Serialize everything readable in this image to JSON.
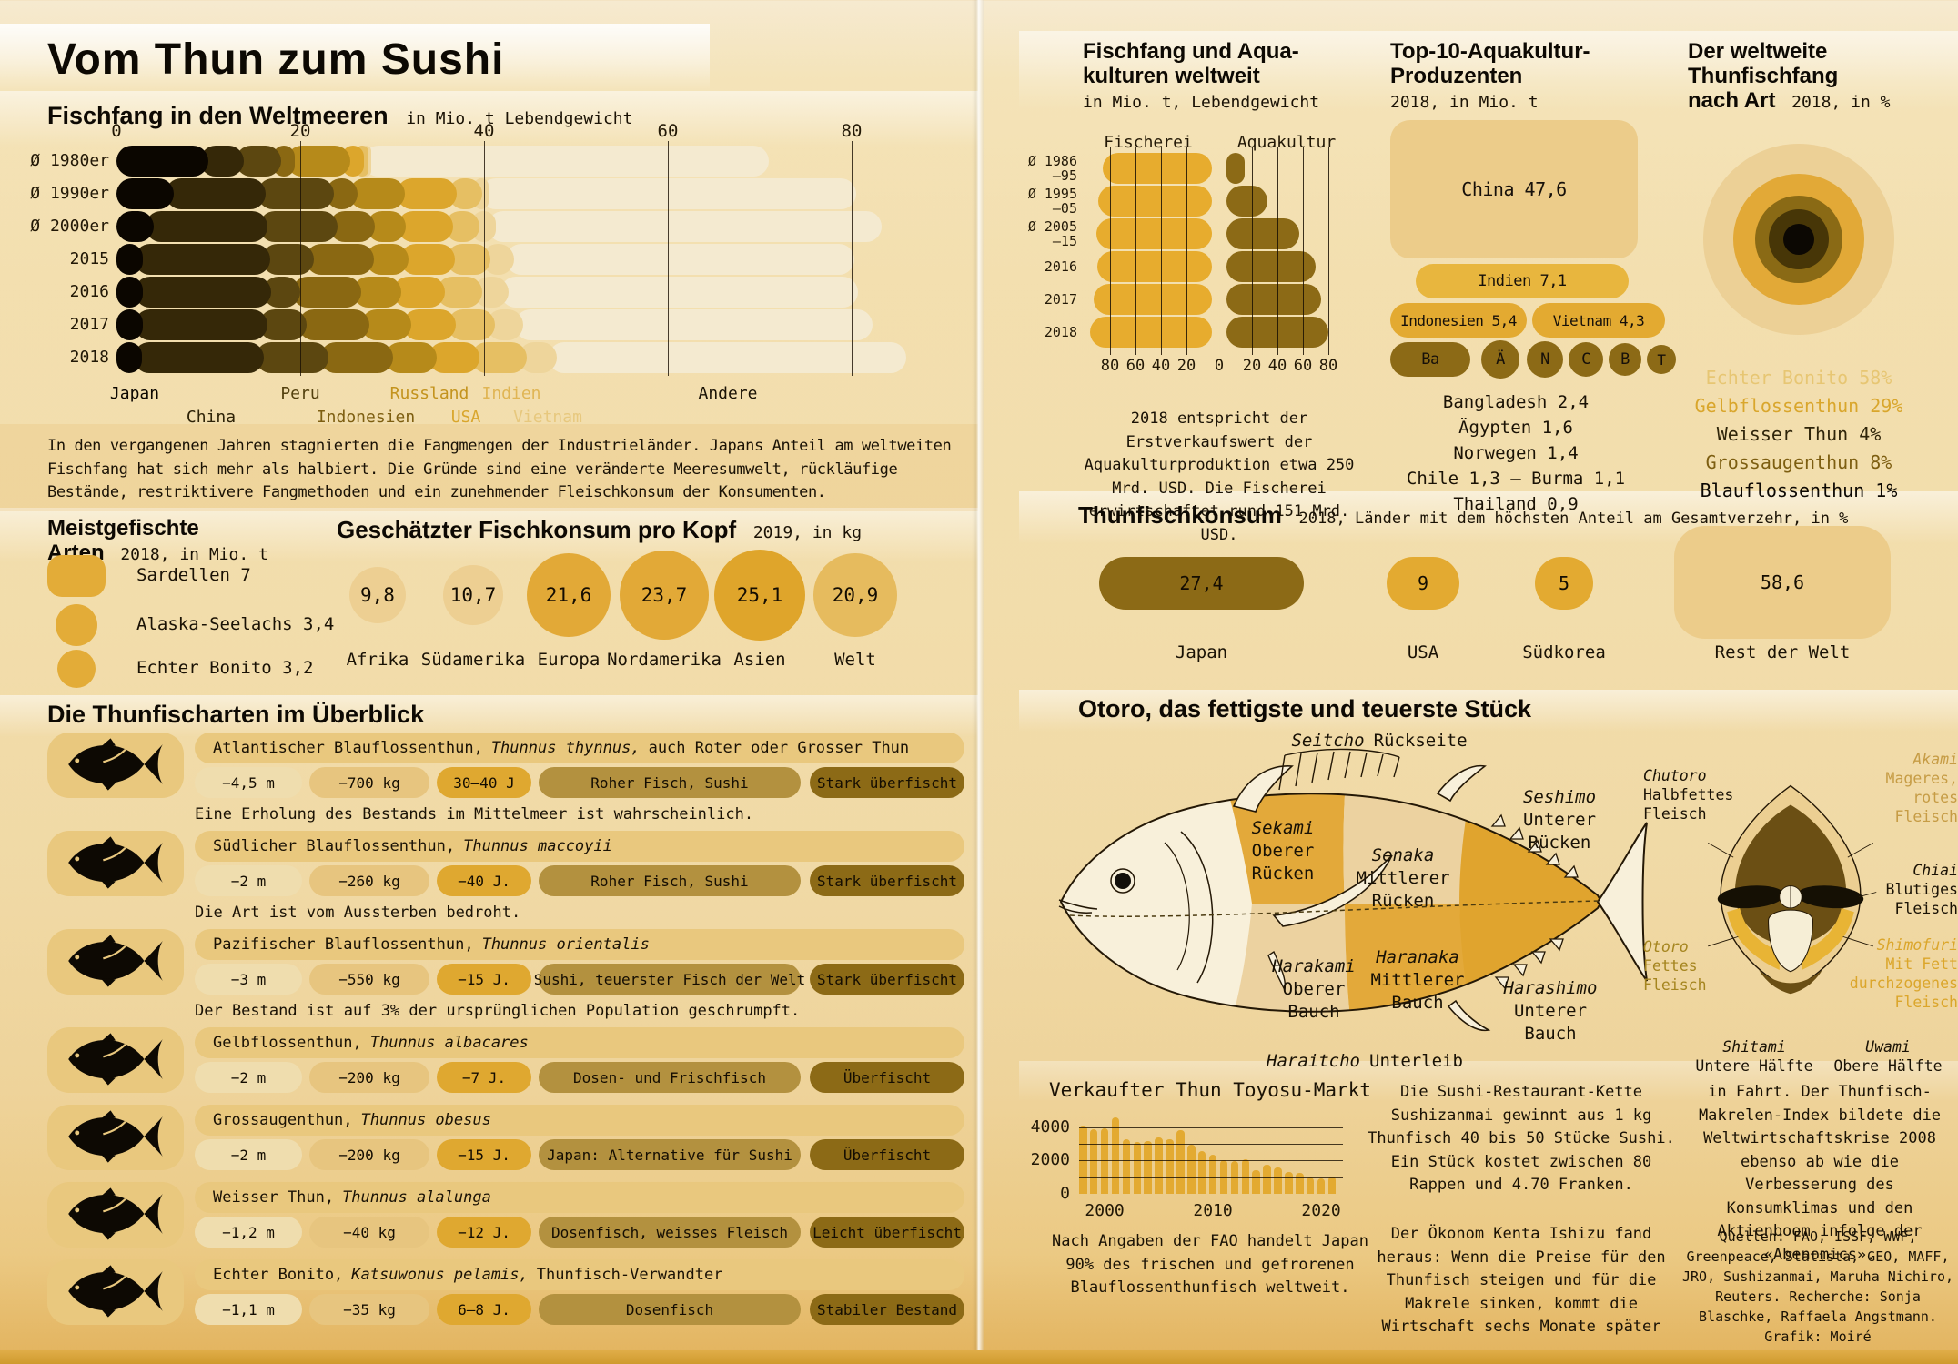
{
  "page": {
    "title": "Vom Thun zum Sushi"
  },
  "weltmeere": {
    "title": "Fischfang in den Weltmeeren",
    "subtitle": "in Mio. t Lebendgewicht",
    "paragraph": "In den vergangenen Jahren stagnierten die Fangmengen der Industrieländer. Japans Anteil am weltweiten Fischfang hat sich mehr als halbiert. Die Gründe sind eine veränderte Meeresumwelt, rückläufige Bestände, restriktivere Fangmethoden und ein zunehmender Fleischkonsum der Konsumenten."
  },
  "meistgefischte": {
    "title_line1": "Meistgefischte",
    "title_line2": "Arten",
    "subtitle": "2018, in Mio. t"
  },
  "fischkonsum": {
    "title": "Geschätzter Fischkonsum pro Kopf",
    "subtitle": "2019, in kg"
  },
  "fang_aqua": {
    "title_line1": "Fischfang und Aqua-",
    "title_line2": "kulturen weltweit",
    "subtitle": "in Mio. t, Lebendgewicht",
    "col_left": "Fischerei",
    "col_right": "Aquakultur",
    "caption": "2018 entspricht der Erstverkaufswert der Aquakulturproduktion etwa 250 Mrd. USD. Die Fischerei erwirtschaftet rund 151 Mrd. USD."
  },
  "top10": {
    "title_line1": "Top-10-Aquakultur-",
    "title_line2": "Produzenten",
    "subtitle": "2018, in Mio. t",
    "list": [
      "Bangladesh 2,4",
      "Ägypten 1,6",
      "Norwegen 1,4",
      "Chile 1,3 – Burma 1,1",
      "Thailand 0,9"
    ]
  },
  "art": {
    "title_line1": "Der weltweite",
    "title_line2": "Thunfischfang",
    "title_line3": "nach Art",
    "subtitle": "2018, in %"
  },
  "konsum": {
    "title": "Thunfischkonsum",
    "subtitle": "2018, Länder mit dem höchsten Anteil am Gesamtverzehr, in %"
  },
  "arten": {
    "title": "Die Thunfischarten im Überblick",
    "rows": [
      {
        "name": "Atlantischer Blauflossenthun,",
        "latin": "Thunnus thynnus,",
        "extra": "auch Roter oder Grosser Thun",
        "length": "−4,5 m",
        "weight": "−700 kg",
        "age": "30–40 J",
        "use": "Roher Fisch, Sushi",
        "status": "Stark überfischt",
        "note": "Eine Erholung des Bestands im Mittelmeer ist wahrscheinlich."
      },
      {
        "name": "Südlicher Blauflossenthun,",
        "latin": "Thunnus maccoyii",
        "extra": "",
        "length": "−2 m",
        "weight": "−260 kg",
        "age": "−40 J.",
        "use": "Roher Fisch, Sushi",
        "status": "Stark überfischt",
        "note": "Die Art ist vom Aussterben bedroht."
      },
      {
        "name": "Pazifischer Blauflossenthun,",
        "latin": "Thunnus orientalis",
        "extra": "",
        "length": "−3 m",
        "weight": "−550 kg",
        "age": "−15 J.",
        "use": "Sushi, teuerster Fisch der Welt",
        "status": "Stark überfischt",
        "note": "Der Bestand ist auf 3% der ursprünglichen Population geschrumpft."
      },
      {
        "name": "Gelbflossenthun,",
        "latin": "Thunnus albacares",
        "extra": "",
        "length": "−2 m",
        "weight": "−200 kg",
        "age": "−7 J.",
        "use": "Dosen- und Frischfisch",
        "status": "Überfischt",
        "note": ""
      },
      {
        "name": "Grossaugenthun,",
        "latin": "Thunnus obesus",
        "extra": "",
        "length": "−2 m",
        "weight": "−200 kg",
        "age": "−15 J.",
        "use": "Japan: Alternative für Sushi",
        "status": "Überfischt",
        "note": ""
      },
      {
        "name": "Weisser Thun,",
        "latin": "Thunnus alalunga",
        "extra": "",
        "length": "−1,2 m",
        "weight": "−40 kg",
        "age": "−12 J.",
        "use": "Dosenfisch, weisses Fleisch",
        "status": "Leicht überfischt",
        "note": ""
      },
      {
        "name": "Echter Bonito,",
        "latin": "Katsuwonus pelamis,",
        "extra": "Thunfisch-Verwandter",
        "length": "−1,1 m",
        "weight": "−35 kg",
        "age": "6–8 J.",
        "use": "Dosenfisch",
        "status": "Stabiler Bestand",
        "note": ""
      }
    ]
  },
  "otoro": {
    "title": "Otoro, das fettigste und teuerste Stück",
    "fish": {
      "seitcho_i": "Seitcho",
      "seitcho_r": "Rückseite",
      "seshimo": [
        "Seshimo",
        "Unterer",
        "Rücken"
      ],
      "sekami": [
        "Sekami",
        "Oberer",
        "Rücken"
      ],
      "senaka": [
        "Senaka",
        "Mittlerer",
        "Rücken"
      ],
      "harakami": [
        "Harakami",
        "Oberer",
        "Bauch"
      ],
      "haranaka": [
        "Haranaka",
        "Mittlerer",
        "Bauch"
      ],
      "harashimo": [
        "Harashimo",
        "Unterer",
        "Bauch"
      ],
      "haraitcho_i": "Haraitcho",
      "haraitcho_r": "Unterleib"
    },
    "cross": {
      "chutoro": [
        "Chutoro",
        "Halbfettes",
        "Fleisch"
      ],
      "akami": [
        "Akami",
        "Mageres,",
        "rotes",
        "Fleisch"
      ],
      "chiai": [
        "Chiai",
        "Blutiges",
        "Fleisch"
      ],
      "shimofuri": [
        "Shimofuri",
        "Mit Fett",
        "durchzogenes",
        "Fleisch"
      ],
      "otoro": [
        "Otoro",
        "Fettes",
        "Fleisch"
      ],
      "shitami": [
        "Shitami",
        "Untere Hälfte"
      ],
      "uwami": [
        "Uwami",
        "Obere Hälfte"
      ]
    }
  },
  "toyosu": {
    "title": "Verkaufter Thun Toyosu-Markt",
    "caption": "Nach Angaben der FAO handelt Japan 90% des frischen und gefrorenen Blauflossenthunfisch weltweit."
  },
  "texts": {
    "col2a": "Die Sushi-Restaurant-Kette Sushizanmai gewinnt aus 1 kg Thunfisch 40 bis 50 Stücke Sushi. Ein Stück kostet zwischen 80 Rappen und 4.70 Franken.",
    "col2b": "Der Ökonom Kenta Ishizu fand heraus: Wenn die Preise für den Thunfisch steigen und für die Makrele sinken, kommt die Wirtschaft sechs Monate später",
    "col3": "in Fahrt. Der Thunfisch-Makrelen-Index bildete die Weltwirtschaftskrise 2008 ebenso ab wie die Verbesserung des Konsumklimas und den Aktienboom infolge der «Abenomics».",
    "sources": "Quellen: FAO, ISSF, WWF, Greenpeace, Statista, GEO, MAFF, JRO, Sushizanmai, Maruha Nichiro, Reuters. Recherche: Sonja Blaschke, Raffaela Angstmann. Grafik: Moiré"
  },
  "chart_data": [
    {
      "id": "weltmeere",
      "type": "bar",
      "stacked": true,
      "orientation": "horizontal",
      "title": "Fischfang in den Weltmeeren",
      "unit": "Mio. t Lebendgewicht",
      "categories": [
        "Ø 1980er",
        "Ø 1990er",
        "Ø 2000er",
        "2015",
        "2016",
        "2017",
        "2018"
      ],
      "xlim": [
        0,
        88
      ],
      "axis_ticks": [
        0,
        20,
        40,
        60,
        80
      ],
      "gridlines": [
        20,
        40,
        60,
        80
      ],
      "series": [
        {
          "name": "Japan",
          "color": "#0b0600",
          "label_color": "#0b0600",
          "values": [
            10,
            6.2,
            4.1,
            2.9,
            2.9,
            2.9,
            2.8
          ]
        },
        {
          "name": "China",
          "color": "#352808",
          "label_color": "#2e2307",
          "values": [
            3.9,
            10,
            12.3,
            13.8,
            13.9,
            13.5,
            13.2
          ]
        },
        {
          "name": "Peru",
          "color": "#5c4710",
          "label_color": "#53400e",
          "values": [
            4,
            7.5,
            7.7,
            4.8,
            3.2,
            4.3,
            7.1
          ]
        },
        {
          "name": "Indonesien",
          "color": "#8a6812",
          "label_color": "#7d5e11",
          "values": [
            1.5,
            2.5,
            4,
            6.5,
            6.6,
            6.8,
            7
          ]
        },
        {
          "name": "Russland",
          "color": "#b68a1a",
          "label_color": "#c3931d",
          "values": [
            6,
            5.2,
            3.4,
            3.8,
            4.4,
            4.6,
            4.8
          ]
        },
        {
          "name": "USA",
          "color": "#dca62c",
          "label_color": "#d9a62c",
          "values": [
            1.5,
            5.6,
            5.1,
            5,
            4.7,
            4.8,
            4.6
          ]
        },
        {
          "name": "Indien",
          "color": "#e6bf63",
          "label_color": "#e0b554",
          "values": [
            0.5,
            2.8,
            2.9,
            3.9,
            4.1,
            4.3,
            5.2
          ]
        },
        {
          "name": "Vietnam",
          "color": "#eed59b",
          "label_color": "#e7c87e",
          "values": [
            0.3,
            0.7,
            1.8,
            2.6,
            2.9,
            3.1,
            3.2
          ]
        },
        {
          "name": "Andere",
          "color": "#f4ead0",
          "label_color": "#1a1205",
          "values": [
            43.3,
            40,
            42,
            37,
            38,
            38,
            38
          ]
        }
      ]
    },
    {
      "id": "meistgefischte",
      "type": "bubble",
      "unit": "Mio. t",
      "items": [
        {
          "label": "Sardellen",
          "value": "7"
        },
        {
          "label": "Alaska-Seelachs",
          "value": "3,4"
        },
        {
          "label": "Echter Bonito",
          "value": "3,2"
        }
      ]
    },
    {
      "id": "fischkonsum_pro_kopf",
      "type": "bubble",
      "unit": "kg",
      "items": [
        {
          "label": "Afrika",
          "value": "9,8",
          "v": 9.8,
          "color": "#edcf92"
        },
        {
          "label": "Südamerika",
          "value": "10,7",
          "v": 10.7,
          "color": "#edcf92"
        },
        {
          "label": "Europa",
          "value": "21,6",
          "v": 21.6,
          "color": "#e2a937"
        },
        {
          "label": "Nordamerika",
          "value": "23,7",
          "v": 23.7,
          "color": "#e2a937"
        },
        {
          "label": "Asien",
          "value": "25,1",
          "v": 25.1,
          "color": "#dfa52b"
        },
        {
          "label": "Welt",
          "value": "20,9",
          "v": 20.9,
          "color": "#e6bb5e"
        }
      ]
    },
    {
      "id": "fang_aquakultur",
      "type": "pyramid",
      "unit": "Mio. t",
      "categories": [
        [
          "Ø 1986",
          "–95"
        ],
        [
          "Ø 1995",
          "–05"
        ],
        [
          "Ø 2005",
          "–15"
        ],
        [
          "2016"
        ],
        [
          "2017"
        ],
        [
          "2018"
        ]
      ],
      "axis_ticks_left": [
        80,
        60,
        40,
        20
      ],
      "zero_label": "0",
      "axis_ticks_right": [
        20,
        40,
        60,
        80
      ],
      "series": [
        {
          "name": "Fischerei",
          "color": "#e7ac2e",
          "values": [
            86,
            89,
            91,
            90,
            93,
            96
          ]
        },
        {
          "name": "Aquakultur",
          "color": "#8c6a16",
          "values": [
            14,
            32,
            57,
            70,
            74,
            80
          ]
        }
      ]
    },
    {
      "id": "top10_aquakultur",
      "type": "treemap",
      "unit": "Mio. t",
      "items": [
        {
          "label": "China",
          "value": "47,6"
        },
        {
          "label": "Indien",
          "value": "7,1"
        },
        {
          "label": "Indonesien",
          "value": "5,4"
        },
        {
          "label": "Vietnam",
          "value": "4,3"
        },
        {
          "label": "Ba",
          "value": ""
        },
        {
          "label": "Ä",
          "value": ""
        },
        {
          "label": "N",
          "value": ""
        },
        {
          "label": "C",
          "value": ""
        },
        {
          "label": "B",
          "value": ""
        },
        {
          "label": "T",
          "value": ""
        }
      ]
    },
    {
      "id": "thunfischfang_nach_art",
      "type": "concentric",
      "unit": "%",
      "items": [
        {
          "label": "Echter Bonito 58%",
          "v": 58,
          "ring_d": 210,
          "color": "#ecd096",
          "label_color": "#e7c673"
        },
        {
          "label": "Gelbflossenthun 29%",
          "v": 29,
          "ring_d": 144,
          "color": "#e2a937",
          "label_color": "#d9a62c"
        },
        {
          "label": "Weisser Thun 4%",
          "v": 4,
          "ring_d": 66,
          "color": "#473607",
          "label_color": "#2e2409"
        },
        {
          "label": "Grossaugenthun 8%",
          "v": 8,
          "ring_d": 96,
          "color": "#8a6a15",
          "label_color": "#7d5e11"
        },
        {
          "label": "Blauflossenthun 1%",
          "v": 1,
          "ring_d": 34,
          "color": "#0c0803",
          "label_color": "#0c0803"
        }
      ]
    },
    {
      "id": "thunfischkonsum",
      "type": "bar",
      "unit": "%",
      "items": [
        {
          "label": "Japan",
          "value": "27,4",
          "v": 27.4,
          "color": "#8c6a16"
        },
        {
          "label": "USA",
          "value": "9",
          "v": 9,
          "color": "#e3aa31"
        },
        {
          "label": "Südkorea",
          "value": "5",
          "v": 5,
          "color": "#e3aa31"
        },
        {
          "label": "Rest der Welt",
          "value": "58,6",
          "v": 58.6,
          "color": "#eccc8a"
        }
      ]
    },
    {
      "id": "toyosu",
      "type": "bar",
      "title": "Verkaufter Thun Toyosu-Markt",
      "x_start": 1998,
      "values": [
        4100,
        3900,
        3950,
        4600,
        3300,
        3100,
        3200,
        3400,
        3300,
        3850,
        2950,
        2600,
        2350,
        2050,
        1950,
        2100,
        1450,
        1750,
        1600,
        1300,
        1250,
        1000,
        950,
        1050
      ],
      "yticks": [
        0,
        2000,
        4000
      ],
      "xticks": [
        2000,
        2010,
        2020
      ],
      "ylim": [
        0,
        4600
      ],
      "gridlines": [
        1000,
        2000,
        3000,
        4000
      ]
    }
  ]
}
